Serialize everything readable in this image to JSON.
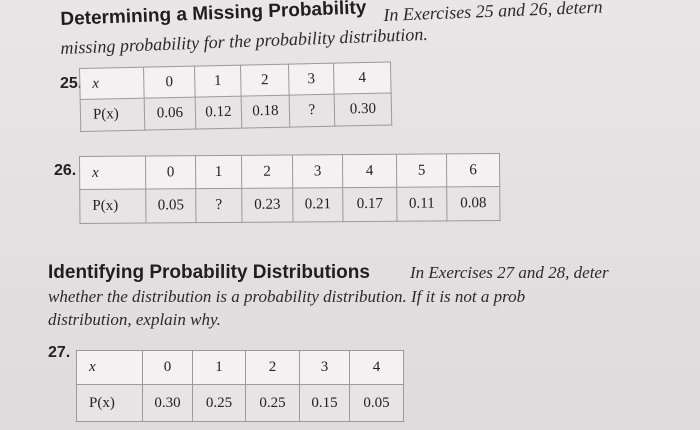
{
  "section1": {
    "title": "Determining a Missing Probability",
    "lead_line1": "In Exercises 25 and 26, detern",
    "lead_line2": "missing probability for the probability distribution."
  },
  "ex25": {
    "number": "25.",
    "x_label": "x",
    "p_label": "P(x)",
    "x": [
      "0",
      "1",
      "2",
      "3",
      "4"
    ],
    "p": [
      "0.06",
      "0.12",
      "0.18",
      "?",
      "0.30"
    ]
  },
  "ex26": {
    "number": "26.",
    "x_label": "x",
    "p_label": "P(x)",
    "x": [
      "0",
      "1",
      "2",
      "3",
      "4",
      "5",
      "6"
    ],
    "p": [
      "0.05",
      "?",
      "0.23",
      "0.21",
      "0.17",
      "0.11",
      "0.08"
    ]
  },
  "section2": {
    "title": "Identifying Probability Distributions",
    "lead_line1": "In Exercises 27 and 28, deter",
    "lead_line2": "whether the distribution is a probability distribution. If it is not a prob",
    "lead_line3": "distribution, explain why."
  },
  "ex27": {
    "number": "27.",
    "x_label": "x",
    "p_label": "P(x)",
    "x": [
      "0",
      "1",
      "2",
      "3",
      "4"
    ],
    "p": [
      "0.30",
      "0.25",
      "0.25",
      "0.15",
      "0.05"
    ]
  }
}
